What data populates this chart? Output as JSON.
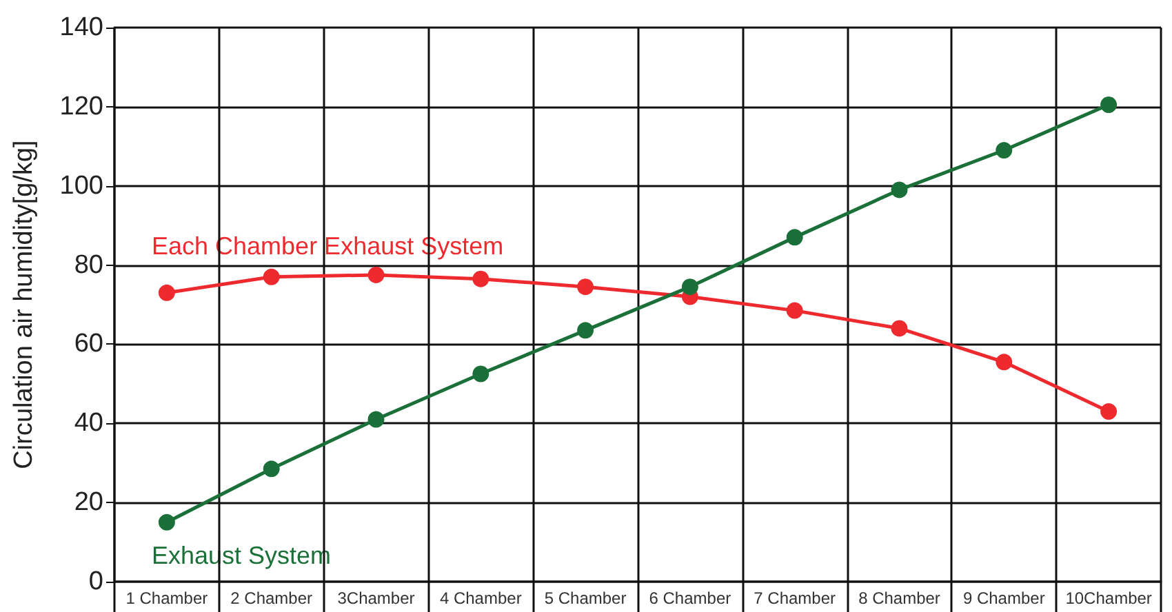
{
  "chart_data": {
    "type": "line",
    "ylabel": "Circulation air humidity[g/kg]",
    "categories": [
      "1 Chamber",
      "2 Chamber",
      "3Chamber",
      "4 Chamber",
      "5 Chamber",
      "6 Chamber",
      "7 Chamber",
      "8 Chamber",
      "9 Chamber",
      "10Chamber"
    ],
    "series": [
      {
        "name": "Each Chamber Exhaust System",
        "color": "#ee2a2f",
        "values": [
          73,
          77,
          77.5,
          76.5,
          74.5,
          72,
          68.5,
          64,
          55.5,
          43
        ]
      },
      {
        "name": "Exhaust System",
        "color": "#1a7038",
        "values": [
          15,
          28.5,
          41,
          52.5,
          63.5,
          74.5,
          87,
          99,
          109,
          120.5
        ]
      }
    ],
    "ylim": [
      0,
      140
    ],
    "yticks": [
      0,
      20,
      40,
      60,
      80,
      100,
      120,
      140
    ],
    "grid": true,
    "legend": false,
    "marker": "circle",
    "line_style": "solid"
  }
}
